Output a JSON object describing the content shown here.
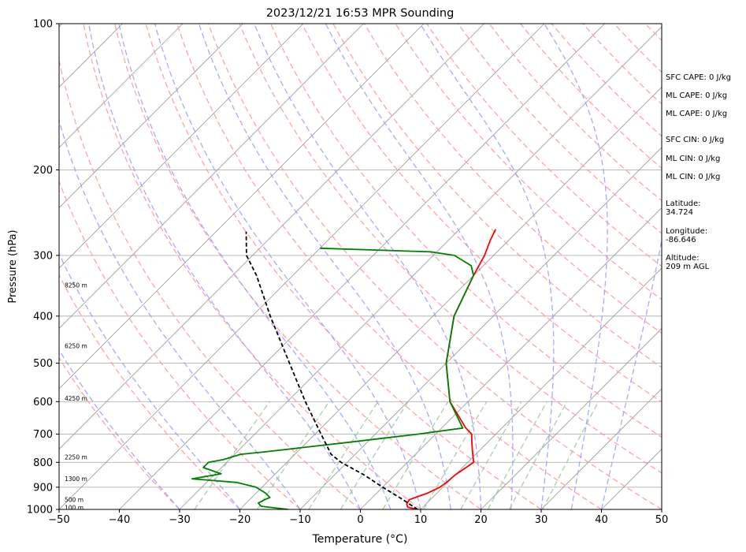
{
  "chart_data": {
    "type": "line",
    "title": "2023/12/21 16:53 MPR Sounding",
    "xlabel": "Temperature (°C)",
    "ylabel": "Pressure (hPa)",
    "xlim": [
      -50,
      50
    ],
    "ylim": [
      1000,
      100
    ],
    "yscale": "log",
    "skew": "skew-T log-P",
    "x_ticks": [
      "−50",
      "−40",
      "−30",
      "−20",
      "−10",
      "0",
      "10",
      "20",
      "30",
      "40",
      "50"
    ],
    "y_ticks": [
      {
        "p": 100,
        "label": "100"
      },
      {
        "p": 200,
        "label": "200"
      },
      {
        "p": 300,
        "label": "300"
      },
      {
        "p": 400,
        "label": "400"
      },
      {
        "p": 500,
        "label": "500"
      },
      {
        "p": 600,
        "label": "600"
      },
      {
        "p": 700,
        "label": "700"
      },
      {
        "p": 800,
        "label": "800"
      },
      {
        "p": 900,
        "label": "900"
      },
      {
        "p": 1000,
        "label": "1000"
      }
    ],
    "height_labels": [
      {
        "p": 345,
        "label": "8250 m"
      },
      {
        "p": 460,
        "label": "6250 m"
      },
      {
        "p": 590,
        "label": "4250 m"
      },
      {
        "p": 780,
        "label": "2250 m"
      },
      {
        "p": 865,
        "label": "1300 m"
      },
      {
        "p": 955,
        "label": "500 m"
      },
      {
        "p": 990,
        "label": "100 m"
      }
    ],
    "series": [
      {
        "color": "#ff0000",
        "points": [
          [
            1000,
            9.5
          ],
          [
            990,
            7.5
          ],
          [
            975,
            6.8
          ],
          [
            955,
            6.5
          ],
          [
            940,
            7.5
          ],
          [
            925,
            8.5
          ],
          [
            900,
            9.5
          ],
          [
            880,
            9.8
          ],
          [
            850,
            10.0
          ],
          [
            825,
            10.5
          ],
          [
            800,
            11.0
          ],
          [
            780,
            10.0
          ],
          [
            750,
            8.5
          ],
          [
            720,
            7.0
          ],
          [
            700,
            6.0
          ],
          [
            680,
            4.0
          ],
          [
            600,
            -3.0
          ],
          [
            500,
            -10.0
          ],
          [
            400,
            -16.5
          ],
          [
            330,
            -20.0
          ],
          [
            300,
            -21.5
          ],
          [
            280,
            -23.0
          ],
          [
            265,
            -24.0
          ]
        ]
      },
      {
        "color": "#008000",
        "points": [
          [
            1000,
            -12.0
          ],
          [
            985,
            -17.0
          ],
          [
            970,
            -18.0
          ],
          [
            955,
            -17.5
          ],
          [
            945,
            -17.0
          ],
          [
            925,
            -18.5
          ],
          [
            900,
            -21.0
          ],
          [
            880,
            -25.0
          ],
          [
            865,
            -33.0
          ],
          [
            845,
            -29.0
          ],
          [
            820,
            -33.0
          ],
          [
            800,
            -33.0
          ],
          [
            790,
            -31.0
          ],
          [
            770,
            -29.0
          ],
          [
            760,
            -25.0
          ],
          [
            730,
            -14.0
          ],
          [
            700,
            -3.0
          ],
          [
            680,
            3.5
          ],
          [
            600,
            -3.0
          ],
          [
            500,
            -10.0
          ],
          [
            400,
            -16.5
          ],
          [
            330,
            -20.0
          ],
          [
            315,
            -22.0
          ],
          [
            300,
            -26.5
          ],
          [
            295,
            -31.0
          ],
          [
            290,
            -50.0
          ]
        ]
      },
      {
        "color": "#000000",
        "dashed": true,
        "points": [
          [
            1000,
            9.5
          ],
          [
            950,
            5.0
          ],
          [
            900,
            0.0
          ],
          [
            850,
            -5.0
          ],
          [
            800,
            -11.0
          ],
          [
            770,
            -14.0
          ],
          [
            700,
            -19.0
          ],
          [
            600,
            -27.0
          ],
          [
            500,
            -36.0
          ],
          [
            400,
            -47.0
          ],
          [
            330,
            -56.0
          ],
          [
            300,
            -61.0
          ],
          [
            268,
            -65.0
          ]
        ]
      }
    ]
  },
  "indices": {
    "sfc_cape": "SFC CAPE: 0 J/kg",
    "ml_cape_1": "ML CAPE: 0 J/kg",
    "ml_cape_2": "ML CAPE: 0 J/kg",
    "sfc_cin": "SFC CIN: 0 J/kg",
    "ml_cin_1": "ML CIN: 0 J/kg",
    "ml_cin_2": "ML CIN: 0 J/kg",
    "latitude": "Latitude:\n34.724",
    "longitude": "Longitude:\n-86.646",
    "altitude": "Altitude:\n209 m AGL"
  },
  "colors": {
    "temperature": "#ff0000",
    "dewpoint": "#008000",
    "parcel": "#000000",
    "dry_adiabat": "#ff9999",
    "moist_adiabat": "#9999ff",
    "mixing_ratio": "#99cc99",
    "isotherm": "#999999"
  }
}
